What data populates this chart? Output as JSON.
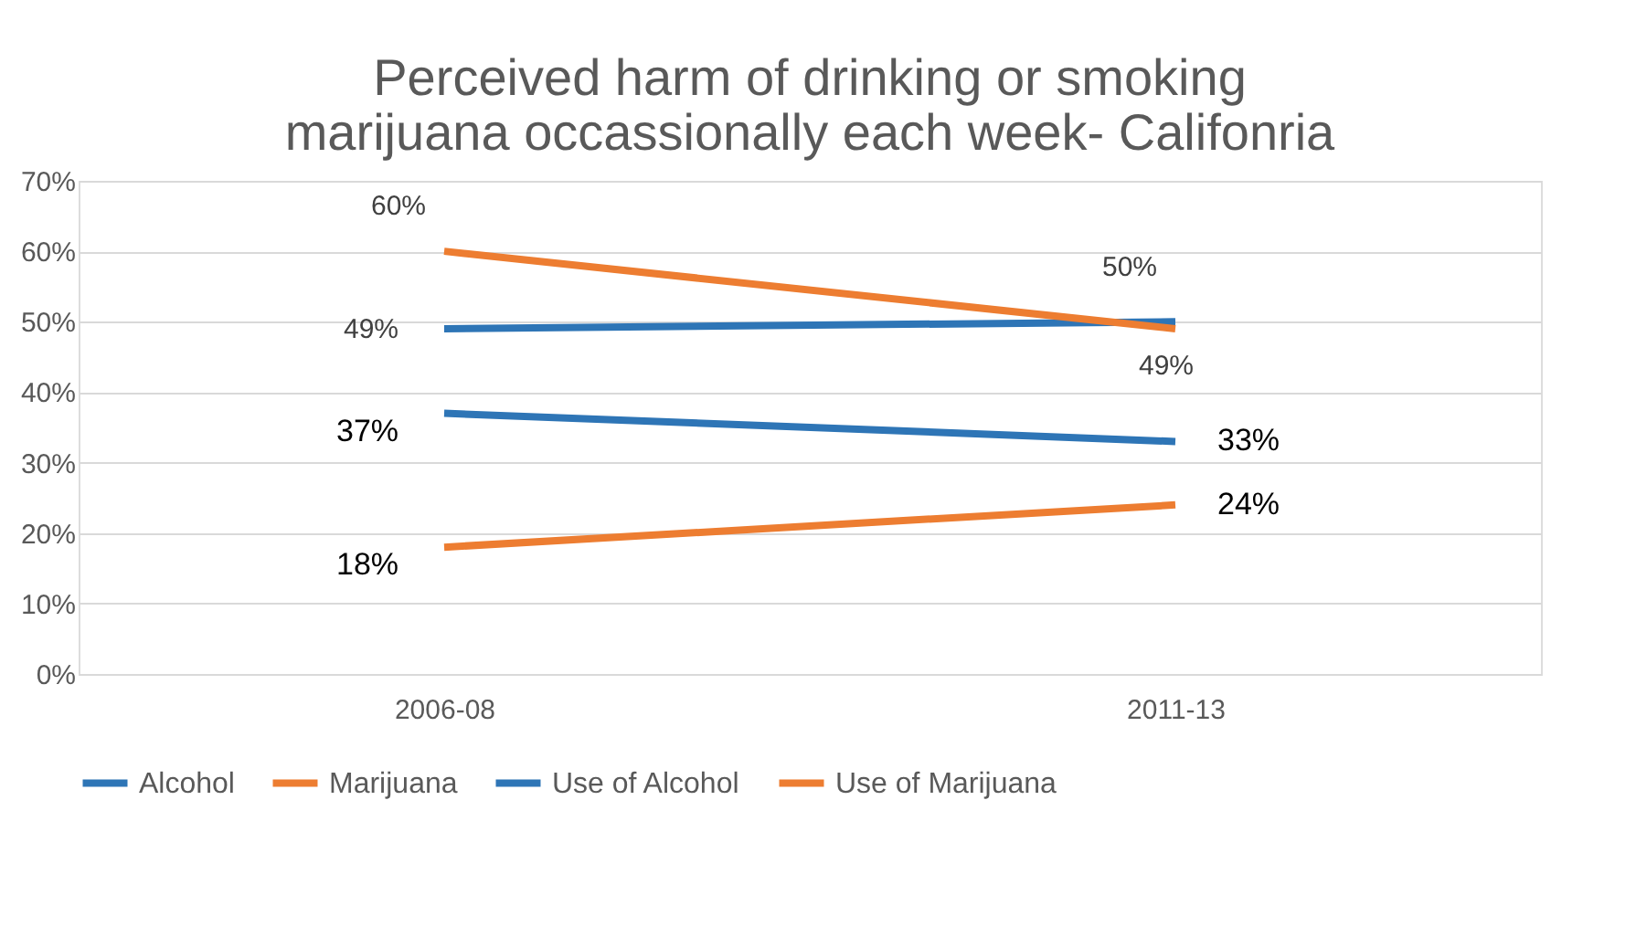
{
  "chart_data": {
    "type": "line",
    "title": [
      "Perceived harm of drinking or smoking",
      "marijuana occassionally each week- Califonria"
    ],
    "categories": [
      "2006-08",
      "2011-13"
    ],
    "series": [
      {
        "name": "Alcohol",
        "color": "#2e75b6",
        "values": [
          49,
          50
        ],
        "value_labels": [
          "49%",
          "50%"
        ]
      },
      {
        "name": "Marijuana",
        "color": "#ed7d31",
        "values": [
          60,
          49
        ],
        "value_labels": [
          "60%",
          "49%"
        ]
      },
      {
        "name": "Use of Alcohol",
        "color": "#2e75b6",
        "values": [
          37,
          33
        ],
        "value_labels": [
          "37%",
          "33%"
        ]
      },
      {
        "name": "Use of Marijuana",
        "color": "#ed7d31",
        "values": [
          18,
          24
        ],
        "value_labels": [
          "18%",
          "24%"
        ]
      }
    ],
    "ylim": [
      0,
      70
    ],
    "yticks": [
      {
        "value": 0,
        "label": "0%"
      },
      {
        "value": 10,
        "label": "10%"
      },
      {
        "value": 20,
        "label": "20%"
      },
      {
        "value": 30,
        "label": "30%"
      },
      {
        "value": 40,
        "label": "40%"
      },
      {
        "value": 50,
        "label": "50%"
      },
      {
        "value": 60,
        "label": "60%"
      },
      {
        "value": 70,
        "label": "70%"
      }
    ],
    "grid": "y",
    "legend": "bottom",
    "marker": "none",
    "line_style": "solid"
  }
}
